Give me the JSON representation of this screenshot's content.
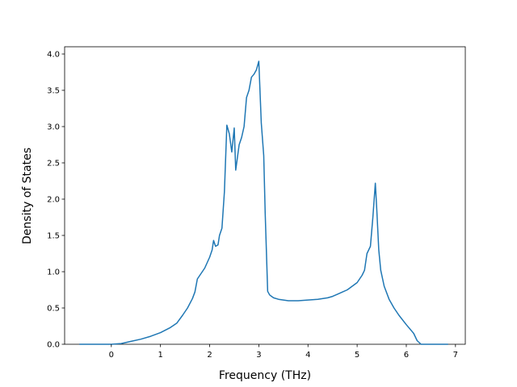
{
  "chart_data": {
    "type": "line",
    "title": "",
    "xlabel": "Frequency (THz)",
    "ylabel": "Density of States",
    "xlim": [
      -0.95,
      7.2
    ],
    "ylim": [
      0,
      4.1
    ],
    "xticks": [
      0,
      1,
      2,
      3,
      4,
      5,
      6,
      7
    ],
    "yticks": [
      0.0,
      0.5,
      1.0,
      1.5,
      2.0,
      2.5,
      3.0,
      3.5,
      4.0
    ],
    "xtick_labels": [
      "0",
      "1",
      "2",
      "3",
      "4",
      "5",
      "6",
      "7"
    ],
    "ytick_labels": [
      "0.0",
      "0.5",
      "1.0",
      "1.5",
      "2.0",
      "2.5",
      "3.0",
      "3.5",
      "4.0"
    ],
    "grid": false,
    "legend": "none",
    "line_color": "#1f77b4",
    "series": [
      {
        "x": [
          -0.65,
          -0.3,
          0.0,
          0.2,
          0.4,
          0.6,
          0.8,
          1.0,
          1.2,
          1.33,
          1.45,
          1.55,
          1.65,
          1.7,
          1.75,
          1.8,
          1.9,
          2.0,
          2.05,
          2.08,
          2.12,
          2.17,
          2.2,
          2.25,
          2.3,
          2.35,
          2.4,
          2.45,
          2.5,
          2.53,
          2.56,
          2.6,
          2.65,
          2.7,
          2.75,
          2.8,
          2.85,
          2.9,
          2.95,
          3.0,
          3.05,
          3.1,
          3.13,
          3.18,
          3.22,
          3.26,
          3.3,
          3.4,
          3.6,
          3.8,
          4.0,
          4.2,
          4.4,
          4.5,
          4.6,
          4.7,
          4.8,
          4.9,
          5.0,
          5.1,
          5.15,
          5.2,
          5.27,
          5.32,
          5.37,
          5.4,
          5.44,
          5.48,
          5.55,
          5.65,
          5.75,
          5.85,
          6.0,
          6.15,
          6.22,
          6.3,
          6.85
        ],
        "y": [
          0.0,
          0.0,
          0.0,
          0.01,
          0.04,
          0.07,
          0.11,
          0.16,
          0.23,
          0.29,
          0.4,
          0.5,
          0.63,
          0.72,
          0.9,
          0.95,
          1.05,
          1.2,
          1.3,
          1.43,
          1.35,
          1.37,
          1.5,
          1.6,
          2.1,
          3.02,
          2.9,
          2.65,
          2.98,
          2.4,
          2.55,
          2.75,
          2.85,
          3.0,
          3.4,
          3.5,
          3.68,
          3.72,
          3.78,
          3.9,
          3.05,
          2.6,
          1.8,
          0.73,
          0.68,
          0.66,
          0.64,
          0.62,
          0.6,
          0.6,
          0.61,
          0.62,
          0.64,
          0.66,
          0.69,
          0.72,
          0.75,
          0.8,
          0.85,
          0.95,
          1.02,
          1.25,
          1.35,
          1.75,
          2.22,
          1.85,
          1.3,
          1.02,
          0.8,
          0.62,
          0.5,
          0.4,
          0.27,
          0.15,
          0.05,
          0.0,
          0.0
        ]
      }
    ]
  }
}
